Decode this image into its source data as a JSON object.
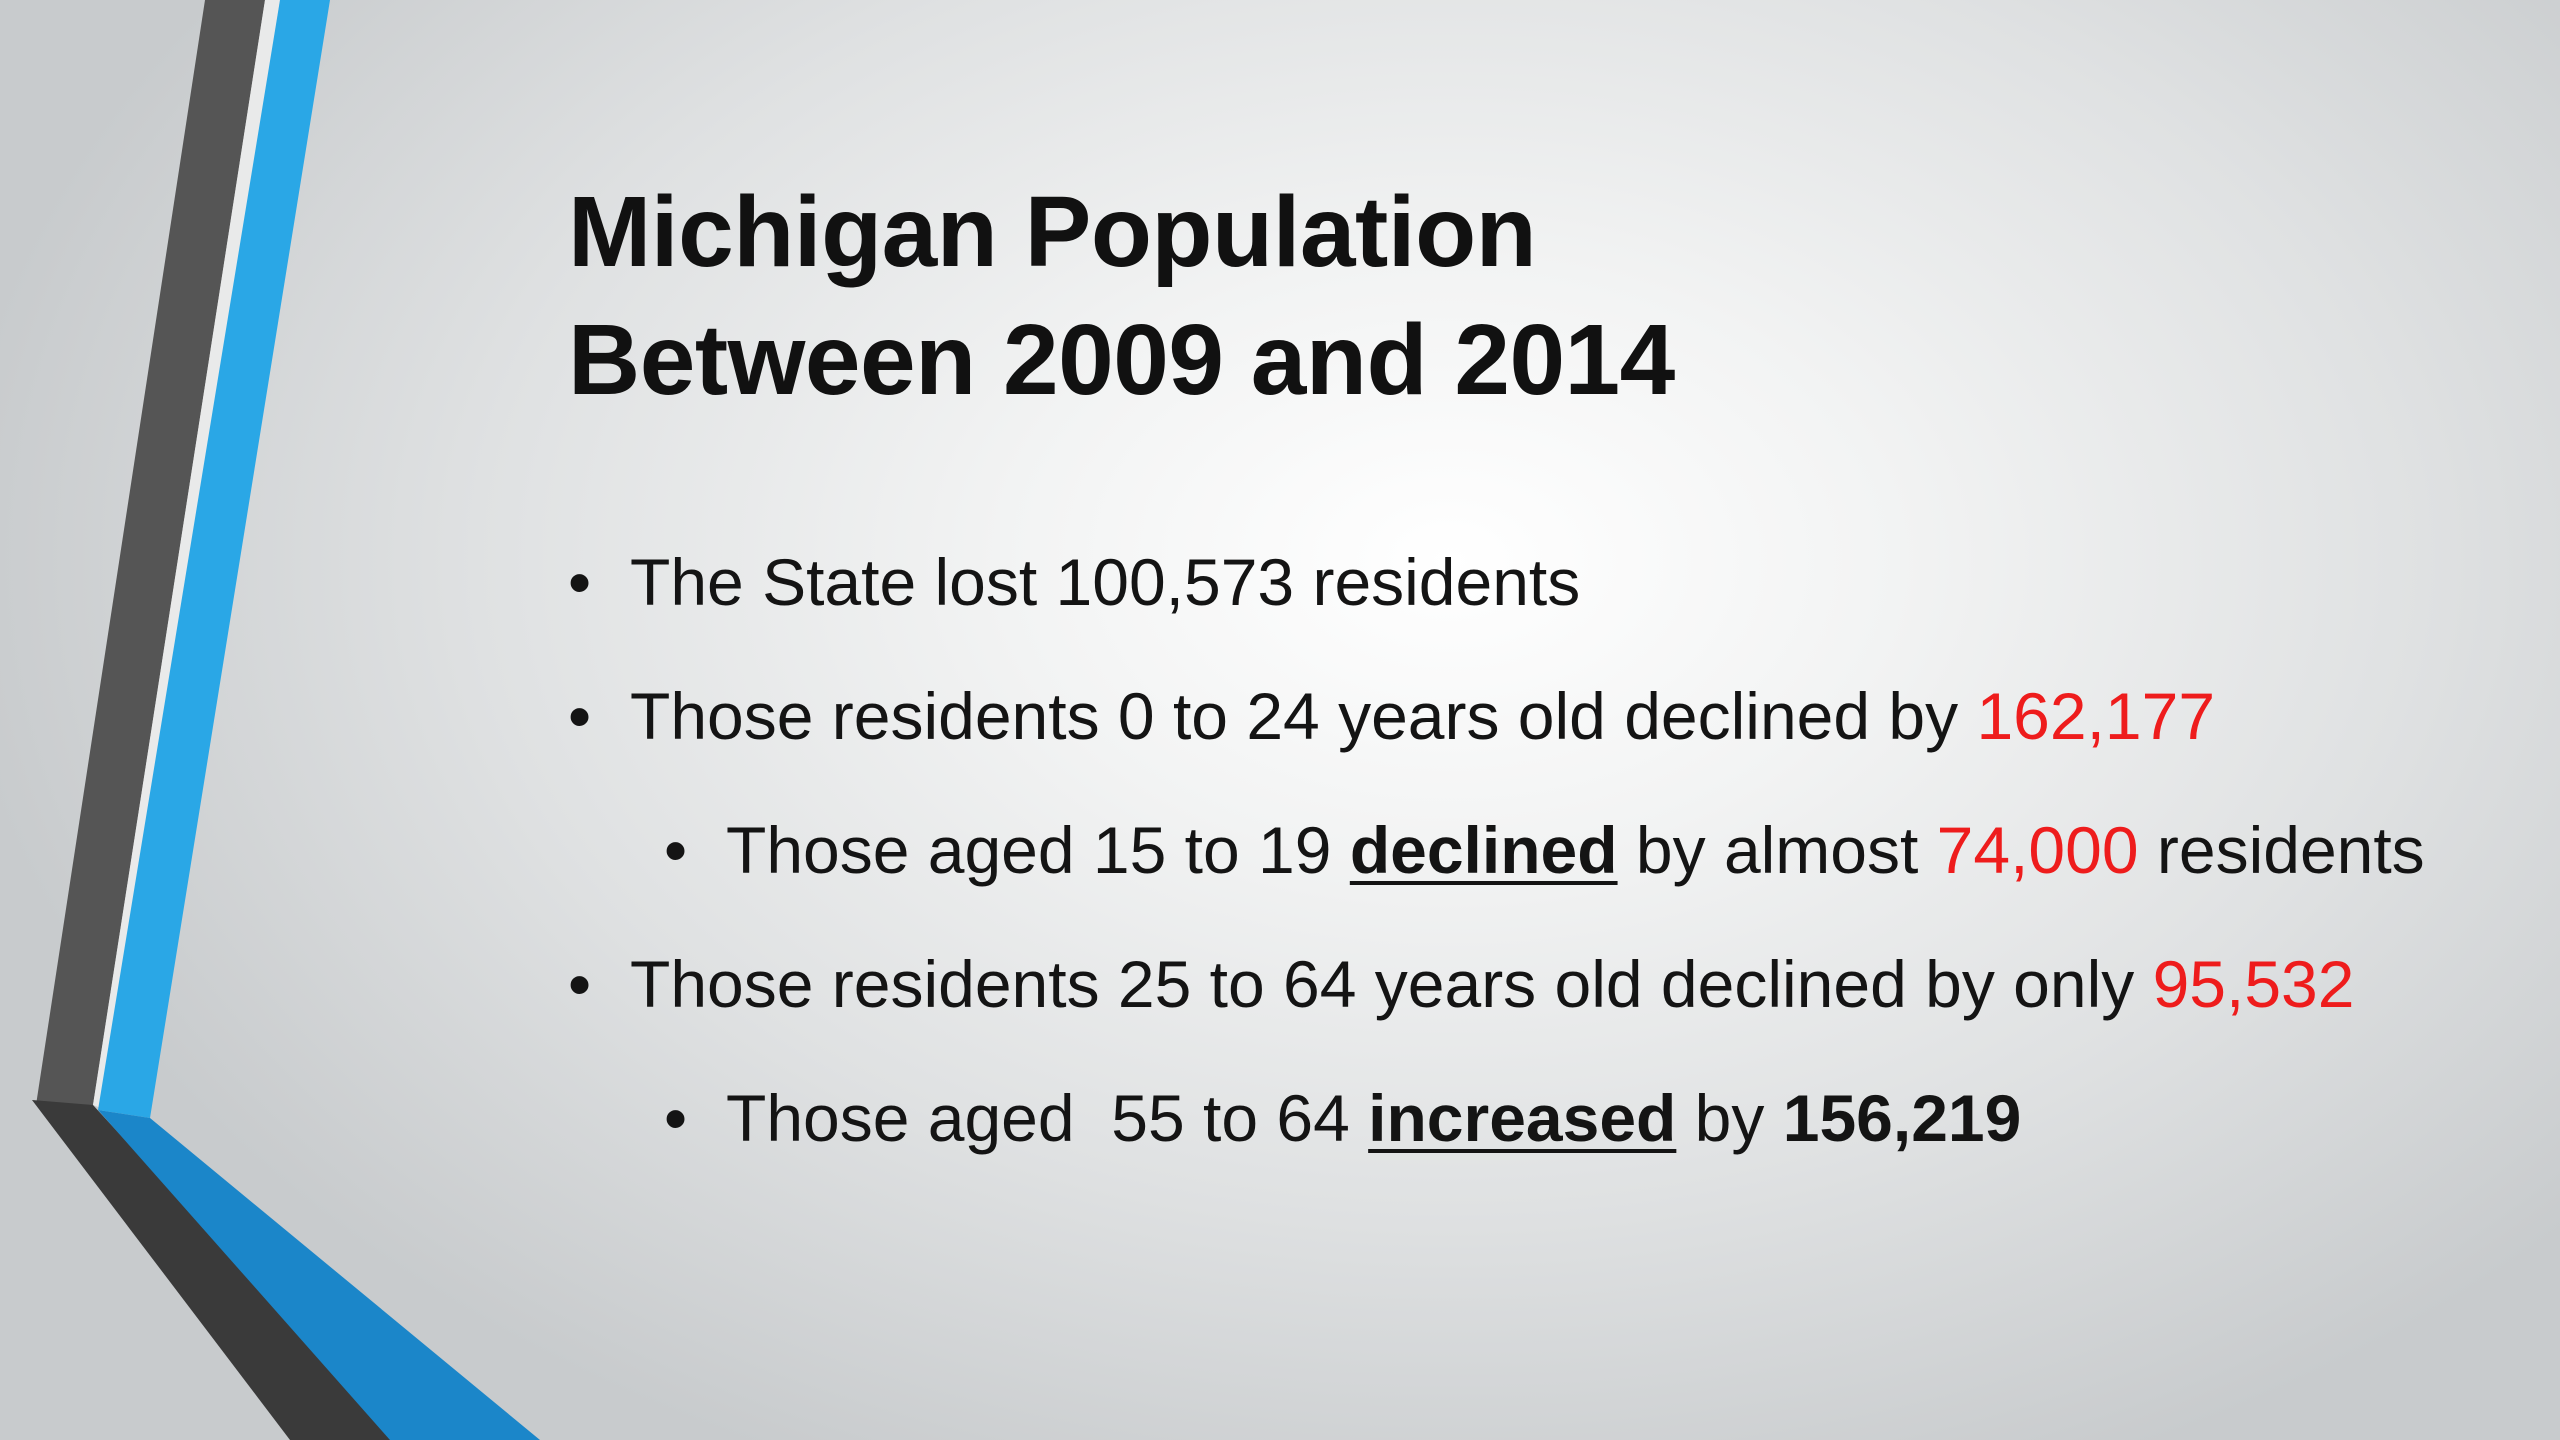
{
  "colors": {
    "accent_blue": "#2aa7e6",
    "accent_blue_dark": "#1b86c9",
    "stripe_gray": "#555555",
    "stripe_dark": "#3a3a3a",
    "highlight_red": "#ee1c1c"
  },
  "title": {
    "line1": "Michigan Population",
    "line2": "Between 2009 and 2014"
  },
  "bullets": {
    "b1": {
      "marker": "•",
      "text": "The State lost 100,573 residents"
    },
    "b2": {
      "marker": "•",
      "prefix": "Those residents 0 to 24 years old declined by ",
      "value": "162,177"
    },
    "b3": {
      "marker": "•",
      "prefix": "Those aged 15 to 19 ",
      "emphasis": "declined",
      "middle": " by almost ",
      "value": "74,000",
      "suffix": " residents"
    },
    "b4": {
      "marker": "•",
      "prefix": "Those residents 25 to 64 years old declined by only ",
      "value": "95,532"
    },
    "b5": {
      "marker": "•",
      "prefix": "Those aged  55 to 64 ",
      "emphasis": "increased",
      "middle": " by ",
      "value": "156,219"
    }
  }
}
